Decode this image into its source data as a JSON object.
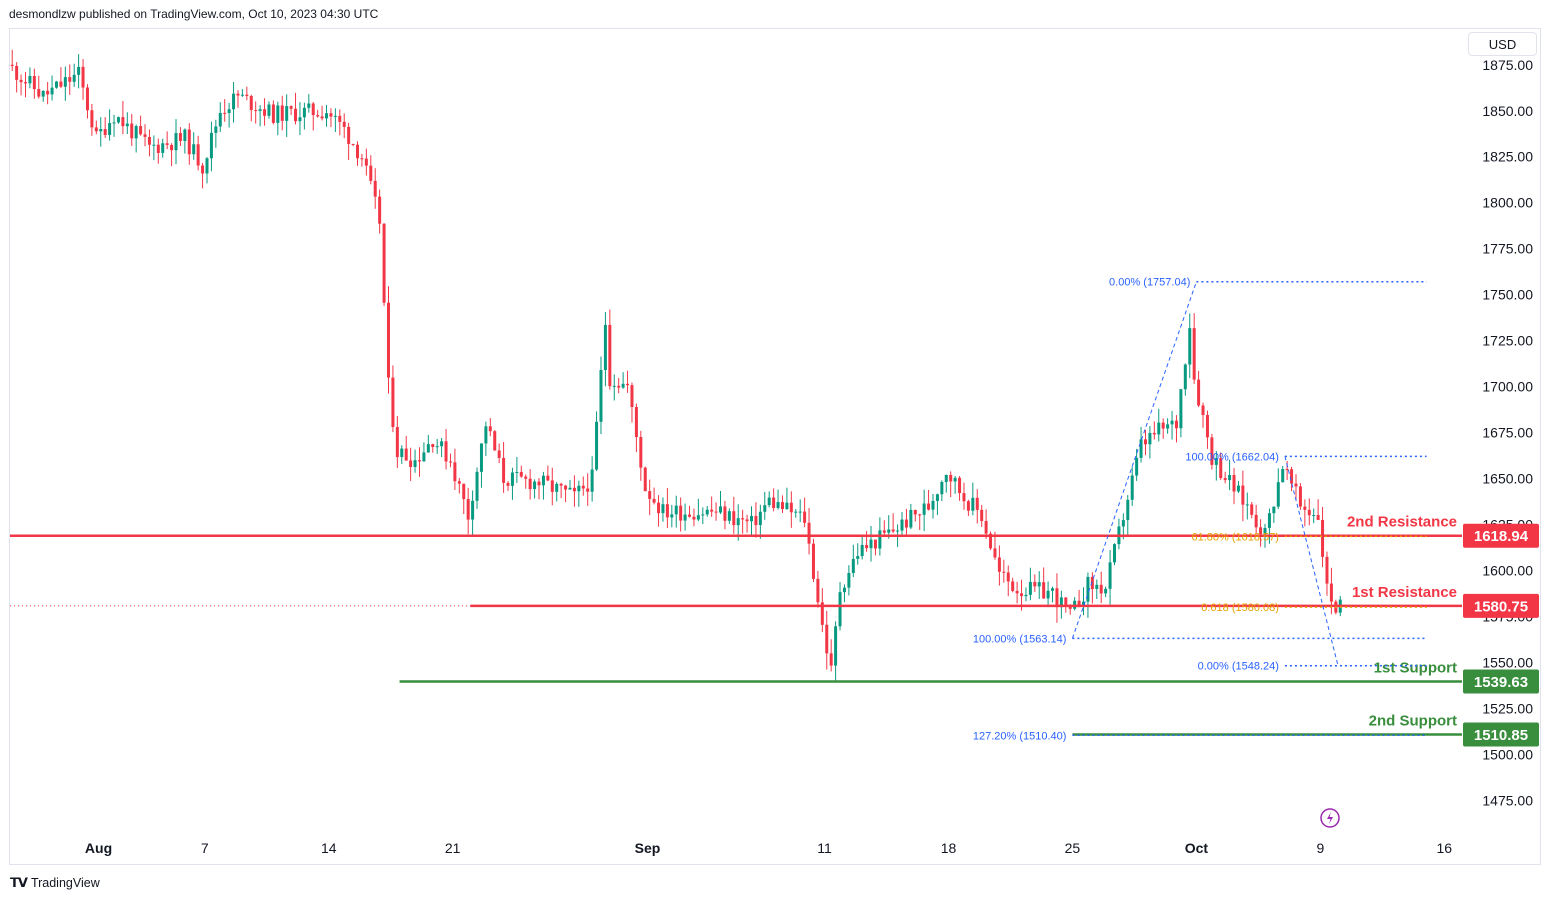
{
  "header": {
    "publisher_line": "desmondlzw published on TradingView.com, Oct 10, 2023 04:30 UTC"
  },
  "currency": "USD",
  "footer": {
    "brand": "TradingView",
    "logo_icon": "tradingview-logo-icon"
  },
  "colors": {
    "up": "#089981",
    "down": "#f23645",
    "resistance": "#f23645",
    "support": "#388e3c",
    "fib": "#2962ff",
    "fib_gold": "#e6a000",
    "axis_text": "#131722",
    "grid": "#e0e3eb"
  },
  "chart_data": {
    "type": "candlestick",
    "symbol_currency": "USD",
    "y_axis": {
      "ylim": [
        1460,
        1895
      ],
      "ticks": [
        "1875.00",
        "1850.00",
        "1825.00",
        "1800.00",
        "1775.00",
        "1750.00",
        "1725.00",
        "1700.00",
        "1675.00",
        "1650.00",
        "1625.00",
        "1600.00",
        "1575.00",
        "1550.00",
        "1525.00",
        "1500.00",
        "1475.00"
      ]
    },
    "x_axis": {
      "xlim": [
        "2023-07-27",
        "2023-10-17"
      ],
      "ticks": [
        {
          "date": "2023-08-01",
          "label": "Aug"
        },
        {
          "date": "2023-08-07",
          "label": "7"
        },
        {
          "date": "2023-08-14",
          "label": "14"
        },
        {
          "date": "2023-08-21",
          "label": "21"
        },
        {
          "date": "2023-09-01",
          "label": "Sep"
        },
        {
          "date": "2023-09-11",
          "label": "11"
        },
        {
          "date": "2023-09-18",
          "label": "18"
        },
        {
          "date": "2023-09-25",
          "label": "25"
        },
        {
          "date": "2023-10-02",
          "label": "Oct"
        },
        {
          "date": "2023-10-09",
          "label": "9"
        },
        {
          "date": "2023-10-16",
          "label": "16"
        }
      ]
    },
    "price_path": [
      [
        "2023-07-27",
        1875
      ],
      [
        "2023-07-29",
        1858
      ],
      [
        "2023-07-31",
        1870
      ],
      [
        "2023-08-01",
        1835
      ],
      [
        "2023-08-02",
        1848
      ],
      [
        "2023-08-04",
        1830
      ],
      [
        "2023-08-06",
        1835
      ],
      [
        "2023-08-07",
        1820
      ],
      [
        "2023-08-08",
        1850
      ],
      [
        "2023-08-09",
        1858
      ],
      [
        "2023-08-11",
        1848
      ],
      [
        "2023-08-14",
        1850
      ],
      [
        "2023-08-15",
        1840
      ],
      [
        "2023-08-16",
        1825
      ],
      [
        "2023-08-17",
        1790
      ],
      [
        "2023-08-17T12",
        1700
      ],
      [
        "2023-08-18",
        1665
      ],
      [
        "2023-08-19",
        1660
      ],
      [
        "2023-08-20",
        1672
      ],
      [
        "2023-08-21",
        1660
      ],
      [
        "2023-08-22",
        1630
      ],
      [
        "2023-08-23",
        1680
      ],
      [
        "2023-08-24",
        1650
      ],
      [
        "2023-08-26",
        1648
      ],
      [
        "2023-08-28",
        1640
      ],
      [
        "2023-08-29",
        1650
      ],
      [
        "2023-08-29T18",
        1735
      ],
      [
        "2023-08-30",
        1705
      ],
      [
        "2023-08-31",
        1700
      ],
      [
        "2023-09-01",
        1645
      ],
      [
        "2023-09-02",
        1632
      ],
      [
        "2023-09-05",
        1632
      ],
      [
        "2023-09-07",
        1625
      ],
      [
        "2023-09-08",
        1638
      ],
      [
        "2023-09-10",
        1628
      ],
      [
        "2023-09-11",
        1570
      ],
      [
        "2023-09-11T12",
        1545
      ],
      [
        "2023-09-12",
        1590
      ],
      [
        "2023-09-13",
        1610
      ],
      [
        "2023-09-15",
        1622
      ],
      [
        "2023-09-17",
        1635
      ],
      [
        "2023-09-18",
        1655
      ],
      [
        "2023-09-19",
        1640
      ],
      [
        "2023-09-20",
        1630
      ],
      [
        "2023-09-21",
        1598
      ],
      [
        "2023-09-22",
        1590
      ],
      [
        "2023-09-24",
        1588
      ],
      [
        "2023-09-25",
        1575
      ],
      [
        "2023-09-26",
        1592
      ],
      [
        "2023-09-27",
        1590
      ],
      [
        "2023-09-28",
        1630
      ],
      [
        "2023-09-29",
        1668
      ],
      [
        "2023-09-30",
        1676
      ],
      [
        "2023-10-01",
        1680
      ],
      [
        "2023-10-01T18",
        1735
      ],
      [
        "2023-10-02",
        1705
      ],
      [
        "2023-10-03",
        1662
      ],
      [
        "2023-10-04",
        1648
      ],
      [
        "2023-10-05",
        1635
      ],
      [
        "2023-10-06",
        1620
      ],
      [
        "2023-10-07",
        1658
      ],
      [
        "2023-10-08",
        1635
      ],
      [
        "2023-10-09",
        1630
      ],
      [
        "2023-10-09T12",
        1590
      ],
      [
        "2023-10-10",
        1580
      ]
    ],
    "horizontal_levels": [
      {
        "name": "2nd Resistance",
        "value": 1618.94,
        "label": "1618.94",
        "kind": "resistance",
        "start": "2023-07-27"
      },
      {
        "name": "1st Resistance",
        "value": 1580.75,
        "label": "1580.75",
        "kind": "resistance",
        "start": "2023-08-22"
      },
      {
        "name": "1st Support",
        "value": 1539.63,
        "label": "1539.63",
        "kind": "support",
        "start": "2023-08-18"
      },
      {
        "name": "2nd Support",
        "value": 1510.85,
        "label": "1510.85",
        "kind": "support",
        "start": "2023-09-25"
      }
    ],
    "fib_levels": [
      {
        "text": "0.00% (1757.04)",
        "value": 1757.04,
        "start": "2023-10-02",
        "end": "2023-10-15",
        "color": "fib"
      },
      {
        "text": "100.00% (1662.04)",
        "value": 1662.04,
        "start": "2023-10-07",
        "end": "2023-10-15",
        "color": "fib"
      },
      {
        "text": "61.80% (1618.57)",
        "value": 1618.57,
        "start": "2023-10-07",
        "end": "2023-10-15",
        "color": "fib_gold"
      },
      {
        "text": "0.618 (1580.08)",
        "value": 1580.08,
        "start": "2023-10-07",
        "end": "2023-10-15",
        "color": "fib_gold"
      },
      {
        "text": "100.00% (1563.14)",
        "value": 1563.14,
        "start": "2023-09-25",
        "end": "2023-10-15",
        "color": "fib"
      },
      {
        "text": "0.00% (1548.24)",
        "value": 1548.24,
        "start": "2023-10-07",
        "end": "2023-10-15",
        "color": "fib"
      },
      {
        "text": "127.20% (1510.40)",
        "value": 1510.4,
        "start": "2023-09-25",
        "end": "2023-10-15",
        "color": "fib"
      }
    ],
    "fib_trendlines": [
      {
        "from": [
          "2023-09-25",
          1563.14
        ],
        "to": [
          "2023-10-02",
          1757.04
        ]
      },
      {
        "from": [
          "2023-10-07",
          1662.04
        ],
        "to": [
          "2023-10-10",
          1548.24
        ]
      }
    ],
    "last_price": 1580.75
  }
}
